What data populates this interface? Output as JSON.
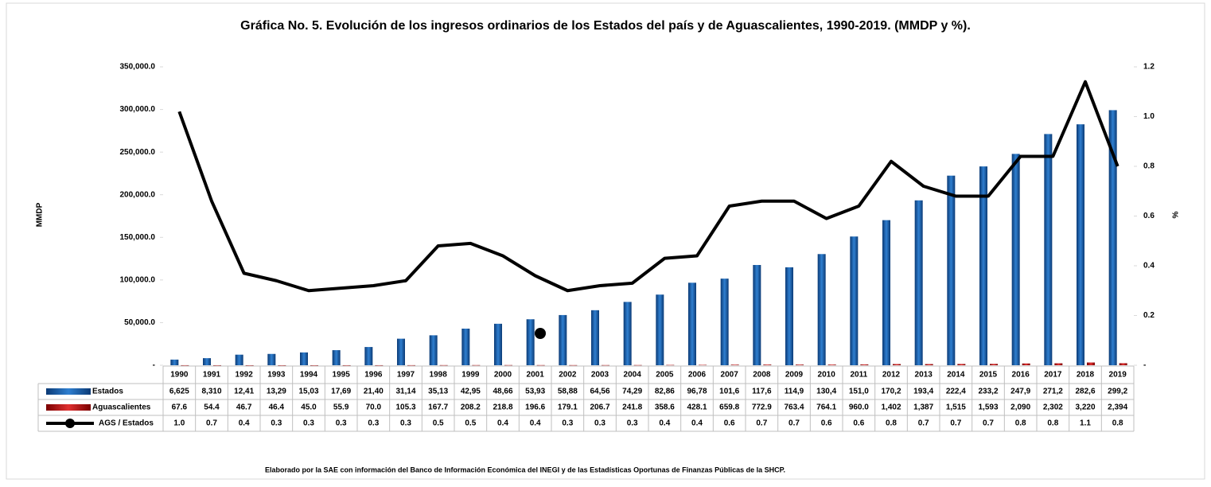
{
  "chart_data": {
    "type": "bar",
    "title": "Gráfica No. 5. Evolución de los ingresos ordinarios de los Estados del país y de Aguascalientes, 1990-2019. (MMDP y %).",
    "y_label": "MMDP",
    "y2_label": "%",
    "footer": "Elaborado por la SAE con información del Banco de Información Económica del INEGI y de las Estadísticas Oportunas de Finanzas Públicas de la SHCP.",
    "categories": [
      "1990",
      "1991",
      "1992",
      "1993",
      "1994",
      "1995",
      "1996",
      "1997",
      "1998",
      "1999",
      "2000",
      "2001",
      "2002",
      "2003",
      "2004",
      "2005",
      "2006",
      "2007",
      "2008",
      "2009",
      "2010",
      "2011",
      "2012",
      "2013",
      "2014",
      "2015",
      "2016",
      "2017",
      "2018",
      "2019"
    ],
    "ylim": [
      0,
      350000
    ],
    "yticks": [
      {
        "value": 0,
        "label": "-"
      },
      {
        "value": 50000,
        "label": "50,000.0"
      },
      {
        "value": 100000,
        "label": "100,000.0"
      },
      {
        "value": 150000,
        "label": "150,000.0"
      },
      {
        "value": 200000,
        "label": "200,000.0"
      },
      {
        "value": 250000,
        "label": "250,000.0"
      },
      {
        "value": 300000,
        "label": "300,000.0"
      },
      {
        "value": 350000,
        "label": "350,000.0"
      }
    ],
    "y2lim": [
      0,
      1.2
    ],
    "y2ticks": [
      {
        "value": 0,
        "label": "-"
      },
      0.2,
      0.4,
      0.6,
      0.8,
      {
        "value": 1,
        "label": "1.0"
      },
      1.2
    ],
    "series": [
      {
        "name": "Estados",
        "type": "bar",
        "color": "#1f5fa8",
        "values": [
          6625,
          8310,
          12410,
          13290,
          15030,
          17690,
          21400,
          31140,
          35130,
          42950,
          48660,
          53930,
          58880,
          64560,
          74290,
          82860,
          96780,
          101600,
          117600,
          114900,
          130400,
          151000,
          170200,
          193400,
          222400,
          233200,
          247900,
          271200,
          282600,
          299200
        ],
        "value_labels": [
          "6,625",
          "8,310",
          "12,41",
          "13,29",
          "15,03",
          "17,69",
          "21,40",
          "31,14",
          "35,13",
          "42,95",
          "48,66",
          "53,93",
          "58,88",
          "64,56",
          "74,29",
          "82,86",
          "96,78",
          "101,6",
          "117,6",
          "114,9",
          "130,4",
          "151,0",
          "170,2",
          "193,4",
          "222,4",
          "233,2",
          "247,9",
          "271,2",
          "282,6",
          "299,2"
        ]
      },
      {
        "name": "Aguascalientes",
        "type": "bar",
        "color": "#c00000",
        "values": [
          67.6,
          54.4,
          46.7,
          46.4,
          45.0,
          55.9,
          70.0,
          105.3,
          167.7,
          208.2,
          218.8,
          196.6,
          179.1,
          206.7,
          241.8,
          358.6,
          428.1,
          659.8,
          772.9,
          763.4,
          764.1,
          960.0,
          1402,
          1387,
          1515,
          1593,
          2090,
          2302,
          3220,
          2394
        ],
        "value_labels": [
          "67.6",
          "54.4",
          "46.7",
          "46.4",
          "45.0",
          "55.9",
          "70.0",
          "105.3",
          "167.7",
          "208.2",
          "218.8",
          "196.6",
          "179.1",
          "206.7",
          "241.8",
          "358.6",
          "428.1",
          "659.8",
          "772.9",
          "763.4",
          "764.1",
          "960.0",
          "1,402",
          "1,387",
          "1,515",
          "1,593",
          "2,090",
          "2,302",
          "3,220",
          "2,394"
        ]
      },
      {
        "name": "AGS / Estados",
        "type": "line",
        "axis": "y2",
        "color": "#000000",
        "values": [
          1.02,
          0.66,
          0.37,
          0.34,
          0.3,
          0.31,
          0.32,
          0.34,
          0.48,
          0.49,
          0.44,
          0.36,
          0.3,
          0.32,
          0.33,
          0.43,
          0.44,
          0.64,
          0.66,
          0.66,
          0.59,
          0.64,
          0.82,
          0.72,
          0.68,
          0.68,
          0.84,
          0.84,
          1.14,
          0.8
        ],
        "value_labels": [
          "1.0",
          "0.7",
          "0.4",
          "0.3",
          "0.3",
          "0.3",
          "0.3",
          "0.3",
          "0.5",
          "0.5",
          "0.4",
          "0.4",
          "0.3",
          "0.3",
          "0.3",
          "0.4",
          "0.4",
          "0.6",
          "0.7",
          "0.7",
          "0.6",
          "0.6",
          "0.8",
          "0.7",
          "0.7",
          "0.7",
          "0.8",
          "0.8",
          "1.1",
          "0.8"
        ]
      }
    ]
  }
}
